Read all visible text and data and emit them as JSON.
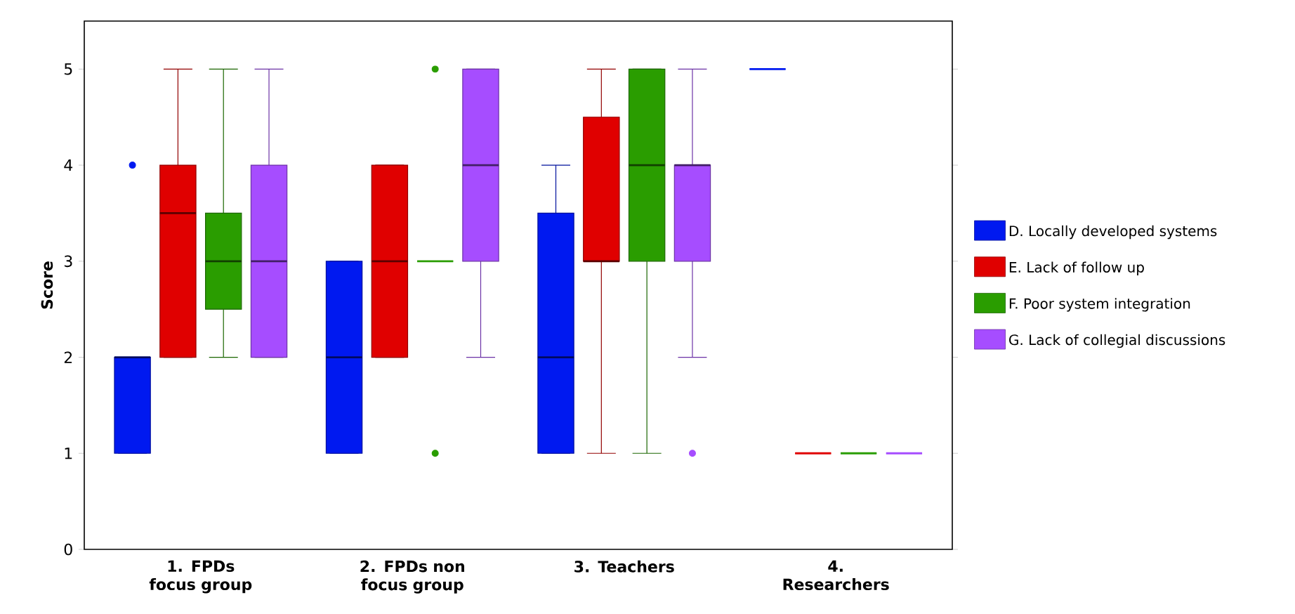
{
  "chart_data": {
    "type": "box",
    "ylabel": "Score",
    "ylim": [
      0,
      5.5
    ],
    "yticks": [
      0,
      1,
      2,
      3,
      4,
      5
    ],
    "legend": "right",
    "grid": false,
    "categories": [
      "1. FPDs focus group",
      "2. FPDs non focus group",
      "3. Teachers",
      "4. Researchers"
    ],
    "series": [
      {
        "name": "D. Locally developed systems",
        "color": "#0019f0",
        "boxes": [
          {
            "low": 1,
            "q1": 1,
            "median": 2,
            "q3": 2,
            "high": 2,
            "outliers": [
              4
            ]
          },
          {
            "low": 1,
            "q1": 1,
            "median": 2,
            "q3": 3,
            "high": 3
          },
          {
            "low": 1,
            "q1": 1,
            "median": 2,
            "q3": 3.5,
            "high": 4
          },
          {
            "low": 5,
            "q1": 5,
            "median": 5,
            "q3": 5,
            "high": 5
          }
        ]
      },
      {
        "name": "E. Lack of follow up",
        "color": "#e00000",
        "boxes": [
          {
            "low": 2,
            "q1": 2,
            "median": 3.5,
            "q3": 4,
            "high": 5
          },
          {
            "low": 2,
            "q1": 2,
            "median": 3,
            "q3": 4,
            "high": 4
          },
          {
            "low": 1,
            "q1": 3,
            "median": 3,
            "q3": 4.5,
            "high": 5
          },
          {
            "low": 1,
            "q1": 1,
            "median": 1,
            "q3": 1,
            "high": 1
          }
        ]
      },
      {
        "name": "F. Poor system integration",
        "color": "#2a9d00",
        "boxes": [
          {
            "low": 2,
            "q1": 2.5,
            "median": 3,
            "q3": 3.5,
            "high": 5
          },
          {
            "low": 3,
            "q1": 3,
            "median": 3,
            "q3": 3,
            "high": 3,
            "outliers": [
              5,
              1
            ]
          },
          {
            "low": 1,
            "q1": 3,
            "median": 4,
            "q3": 5,
            "high": 5
          },
          {
            "low": 1,
            "q1": 1,
            "median": 1,
            "q3": 1,
            "high": 1
          }
        ]
      },
      {
        "name": "G. Lack of collegial discussions",
        "color": "#a64dff",
        "boxes": [
          {
            "low": 2,
            "q1": 2,
            "median": 3,
            "q3": 4,
            "high": 5
          },
          {
            "low": 2,
            "q1": 3,
            "median": 4,
            "q3": 5,
            "high": 5
          },
          {
            "low": 2,
            "q1": 3,
            "median": 4,
            "q3": 4,
            "high": 5,
            "outliers": [
              1
            ]
          },
          {
            "low": 1,
            "q1": 1,
            "median": 1,
            "q3": 1,
            "high": 1
          }
        ]
      }
    ]
  }
}
